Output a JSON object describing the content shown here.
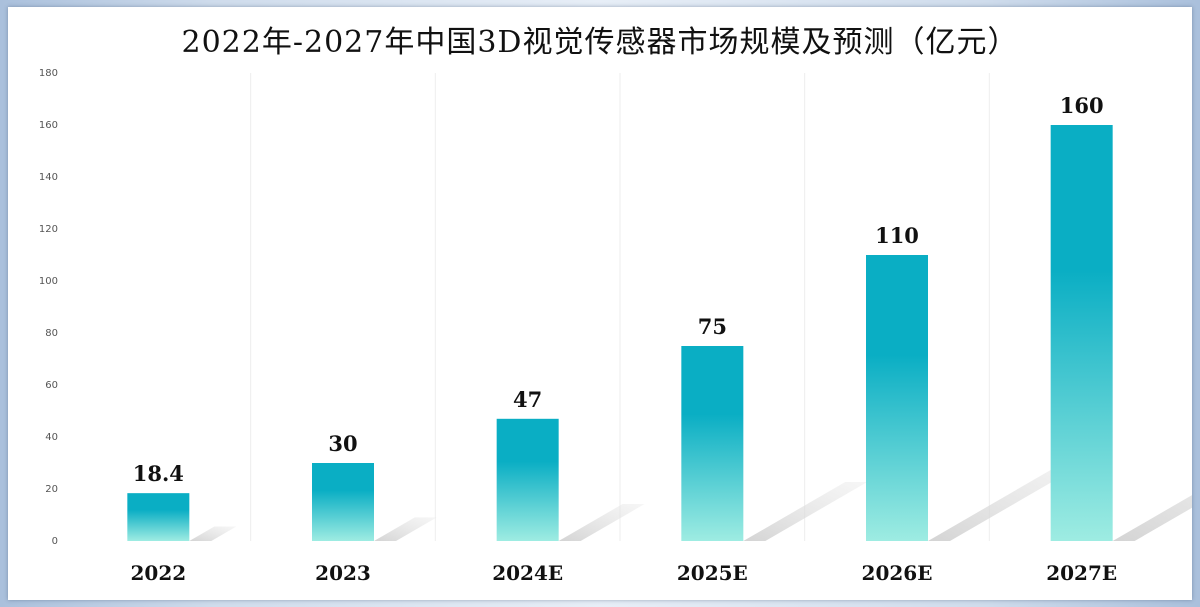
{
  "chart_data": {
    "type": "bar",
    "title": "2022年-2027年中国3D视觉传感器市场规模及预测（亿元）",
    "xlabel": "",
    "ylabel": "",
    "categories": [
      "2022",
      "2023",
      "2024E",
      "2025E",
      "2026E",
      "2027E"
    ],
    "values": [
      18.4,
      30,
      47,
      75,
      110,
      160
    ],
    "data_labels": [
      "18.4",
      "30",
      "47",
      "75",
      "110",
      "160"
    ],
    "ylim": [
      0,
      180
    ],
    "yticks": [
      0,
      20,
      40,
      60,
      80,
      100,
      120,
      140,
      160,
      180
    ],
    "grid": "vertical separators",
    "legend": "none",
    "colors": {
      "bar_top": "#0aaec4",
      "bar_bottom": "#9eece2",
      "shadow": "#d9d9d9"
    }
  }
}
